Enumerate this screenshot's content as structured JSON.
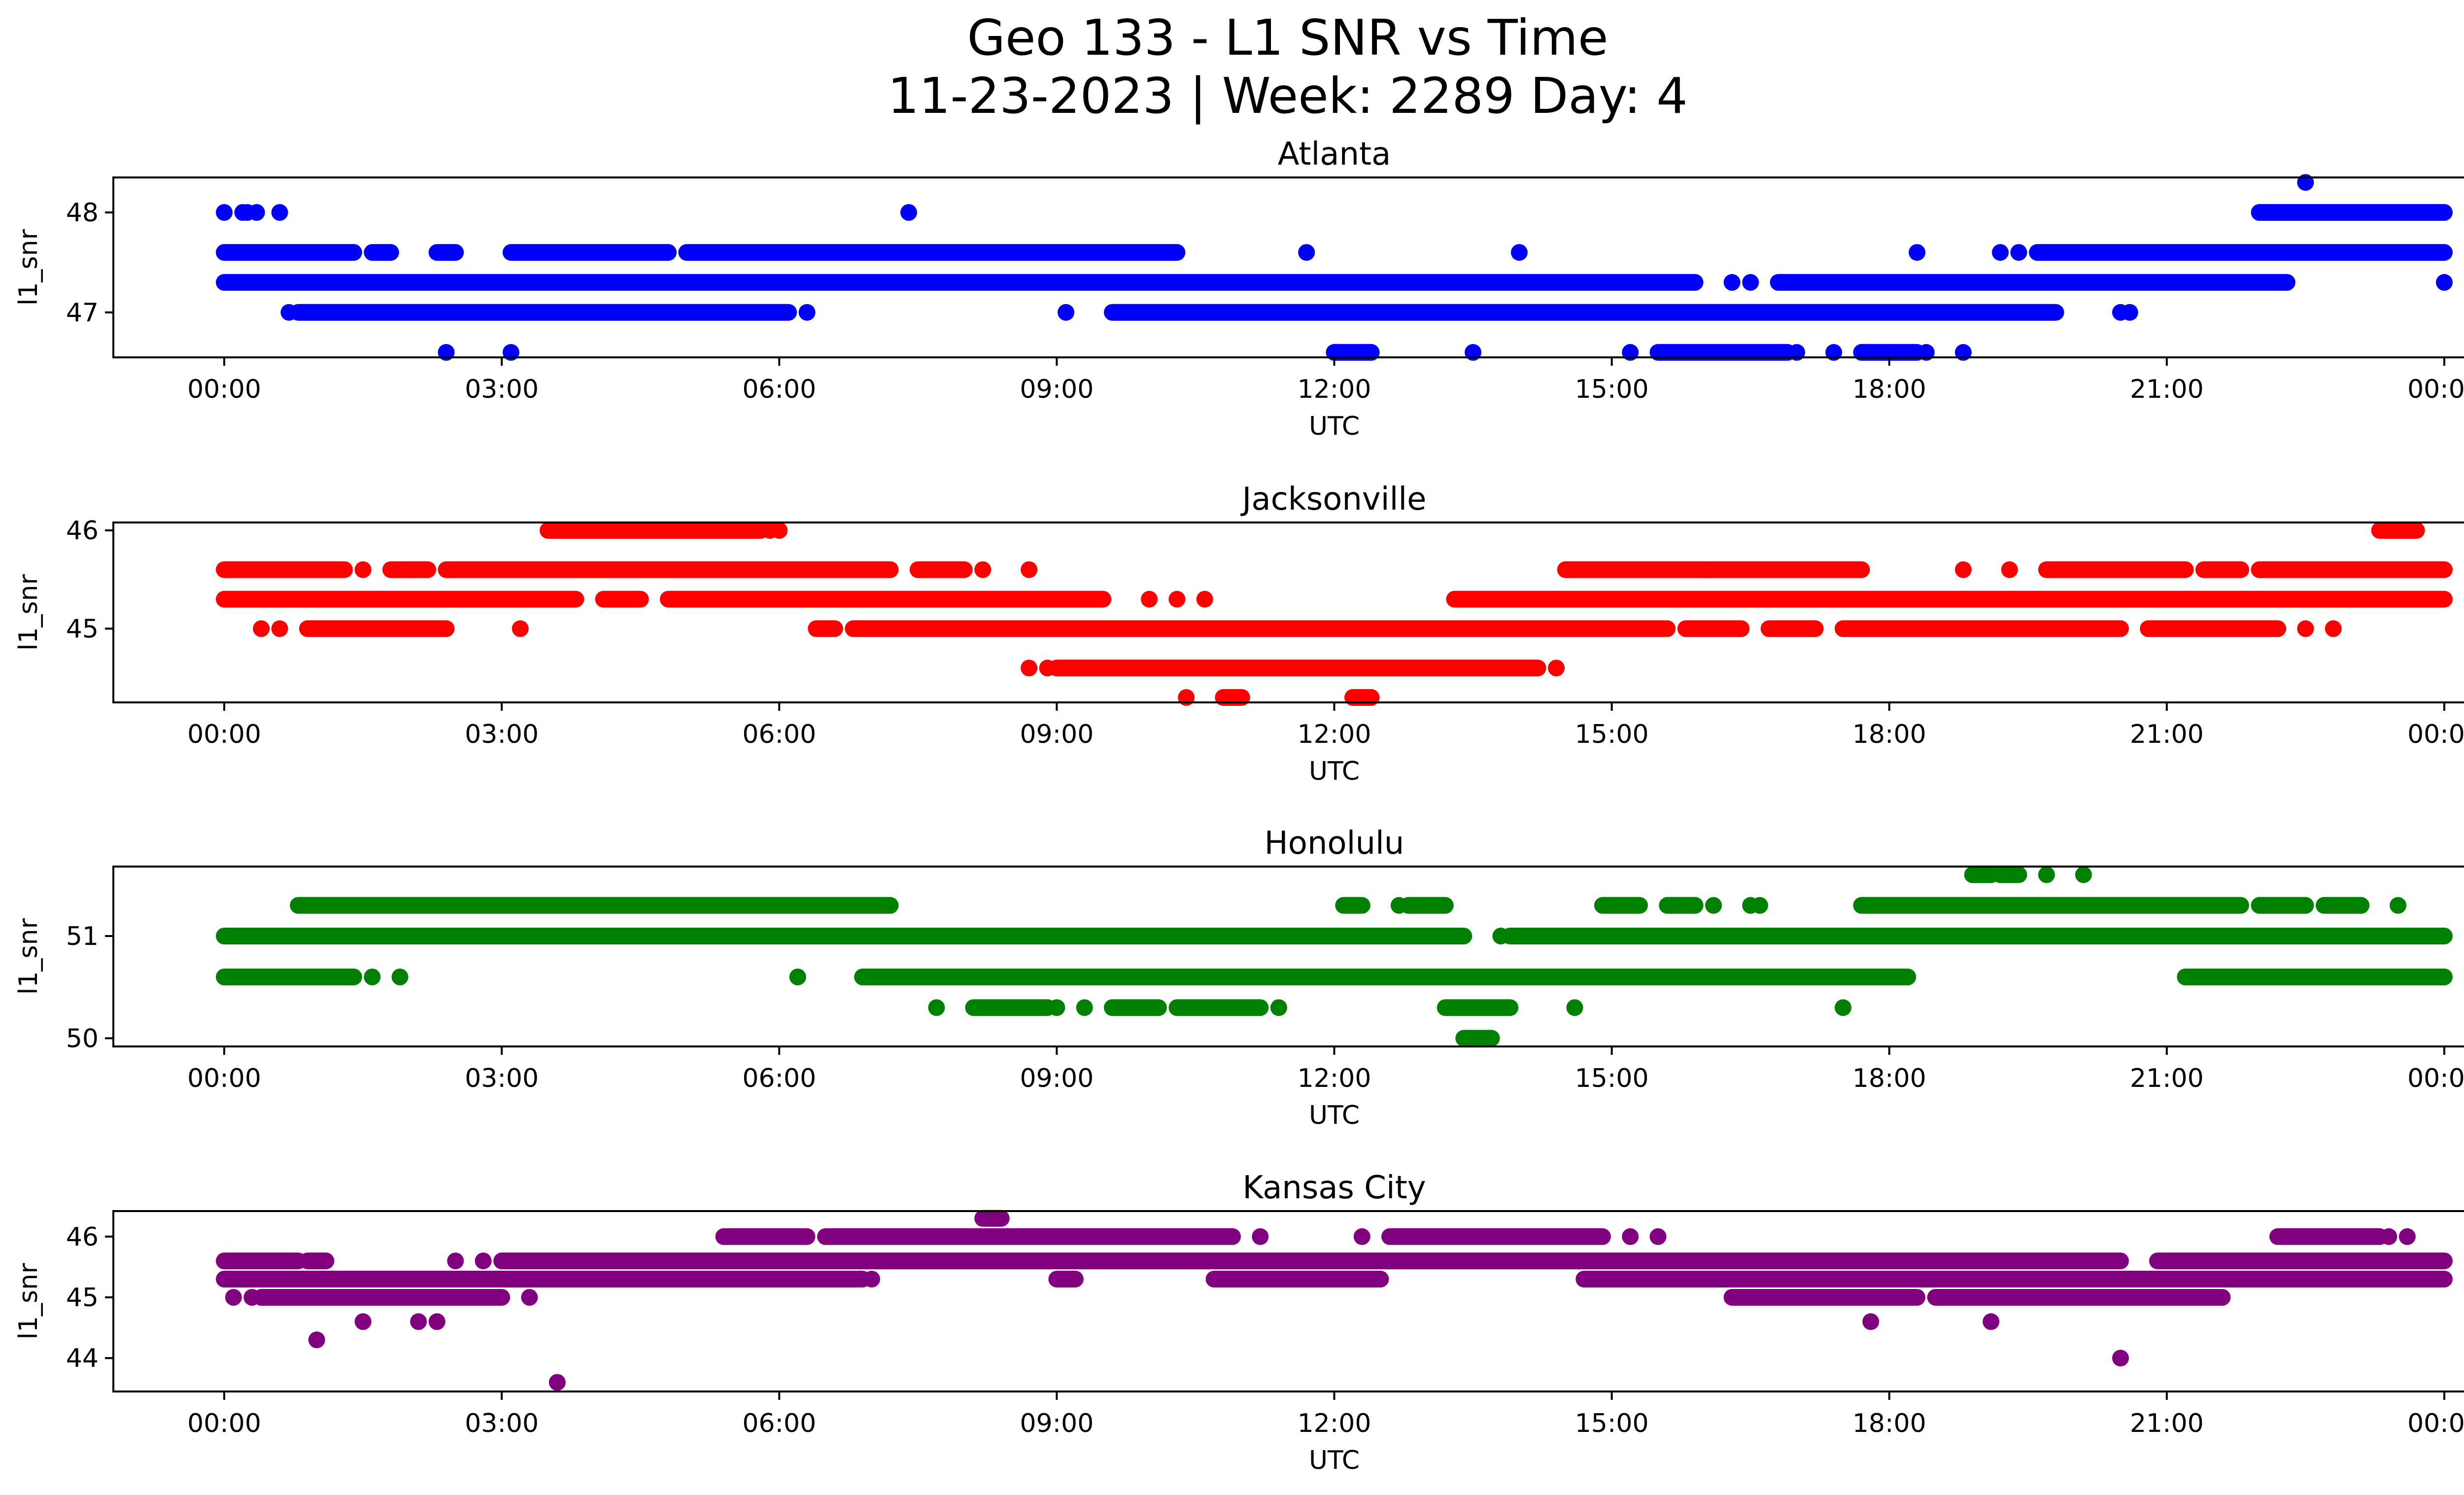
{
  "title_line1": "Geo 133 - L1 SNR vs Time",
  "title_line2": "11-23-2023 | Week: 2289 Day: 4",
  "chart_data": [
    {
      "type": "scatter",
      "title": "Atlanta",
      "color": "#0000ff",
      "xlabel": "UTC",
      "ylabel": "l1_snr",
      "xlim": [
        "00:00",
        "24:00"
      ],
      "ylim": [
        46.55,
        48.35
      ],
      "x_ticks": [
        "00:00",
        "03:00",
        "06:00",
        "09:00",
        "12:00",
        "15:00",
        "18:00",
        "21:00",
        "00:00"
      ],
      "y_ticks": [
        47,
        48
      ],
      "levels": [
        {
          "y": 48.3,
          "segments": [
            [
              22.5,
              22.5
            ]
          ]
        },
        {
          "y": 48.0,
          "points": [
            0.0,
            0.2,
            0.25,
            0.35,
            0.6,
            7.4
          ],
          "segments": [
            [
              22.0,
              24.0
            ]
          ]
        },
        {
          "y": 47.6,
          "points": [
            11.7,
            14.0,
            18.3,
            19.2,
            19.4
          ],
          "segments": [
            [
              0.0,
              1.4
            ],
            [
              1.6,
              1.8
            ],
            [
              2.3,
              2.5
            ],
            [
              3.1,
              4.8
            ],
            [
              5.0,
              10.3
            ],
            [
              19.6,
              24.0
            ]
          ]
        },
        {
          "y": 47.3,
          "points": [
            16.3,
            16.5,
            24.0
          ],
          "segments": [
            [
              0.0,
              15.9
            ],
            [
              16.8,
              22.3
            ]
          ]
        },
        {
          "y": 47.0,
          "points": [
            0.7,
            6.3,
            9.1,
            20.5,
            20.6
          ],
          "segments": [
            [
              0.8,
              6.1
            ],
            [
              9.6,
              19.8
            ]
          ]
        },
        {
          "y": 46.6,
          "points": [
            2.4,
            3.1,
            13.5,
            15.2,
            17.0,
            17.4,
            18.0,
            18.4,
            18.8
          ],
          "segments": [
            [
              12.0,
              12.4
            ],
            [
              15.5,
              16.9
            ],
            [
              17.7,
              18.3
            ]
          ]
        }
      ]
    },
    {
      "type": "scatter",
      "title": "Jacksonville",
      "color": "#ff0000",
      "xlabel": "UTC",
      "ylabel": "l1_snr",
      "xlim": [
        "00:00",
        "24:00"
      ],
      "ylim": [
        44.25,
        46.08
      ],
      "x_ticks": [
        "00:00",
        "03:00",
        "06:00",
        "09:00",
        "12:00",
        "15:00",
        "18:00",
        "21:00",
        "00:00"
      ],
      "y_ticks": [
        45,
        46
      ],
      "levels": [
        {
          "y": 46.0,
          "points": [
            5.9,
            6.0
          ],
          "segments": [
            [
              3.5,
              5.8
            ],
            [
              23.3,
              23.7
            ]
          ]
        },
        {
          "y": 45.6,
          "points": [
            1.5,
            2.0,
            8.2,
            8.7,
            16.0,
            18.8,
            19.3
          ],
          "segments": [
            [
              0.0,
              1.3
            ],
            [
              1.8,
              2.2
            ],
            [
              2.4,
              7.2
            ],
            [
              7.5,
              8.0
            ],
            [
              14.5,
              17.7
            ],
            [
              19.7,
              21.2
            ],
            [
              21.4,
              21.8
            ],
            [
              22.0,
              24.0
            ]
          ]
        },
        {
          "y": 45.3,
          "points": [
            10.0,
            10.3,
            10.6
          ],
          "segments": [
            [
              0.0,
              3.8
            ],
            [
              4.1,
              4.5
            ],
            [
              4.8,
              9.5
            ],
            [
              13.3,
              24.0
            ]
          ]
        },
        {
          "y": 45.0,
          "points": [
            0.4,
            0.6,
            3.2,
            22.5,
            22.8
          ],
          "segments": [
            [
              0.9,
              2.4
            ],
            [
              6.4,
              6.6
            ],
            [
              6.8,
              15.6
            ],
            [
              15.8,
              16.4
            ],
            [
              16.7,
              17.2
            ],
            [
              17.5,
              20.5
            ],
            [
              20.8,
              22.2
            ]
          ]
        },
        {
          "y": 44.6,
          "points": [
            8.7,
            8.9,
            14.4
          ],
          "segments": [
            [
              9.0,
              14.2
            ]
          ]
        },
        {
          "y": 44.3,
          "points": [
            10.4,
            10.9
          ],
          "segments": [
            [
              10.8,
              11.0
            ],
            [
              12.2,
              12.4
            ]
          ]
        }
      ]
    },
    {
      "type": "scatter",
      "title": "Honolulu",
      "color": "#008000",
      "xlabel": "UTC",
      "ylabel": "l1_snr",
      "xlim": [
        "00:00",
        "24:00"
      ],
      "ylim": [
        49.92,
        51.68
      ],
      "x_ticks": [
        "00:00",
        "03:00",
        "06:00",
        "09:00",
        "12:00",
        "15:00",
        "18:00",
        "21:00",
        "00:00"
      ],
      "y_ticks": [
        50,
        51
      ],
      "levels": [
        {
          "y": 51.6,
          "points": [
            19.7,
            20.1
          ],
          "segments": [
            [
              18.9,
              19.1
            ],
            [
              19.2,
              19.4
            ]
          ]
        },
        {
          "y": 51.3,
          "points": [
            12.7,
            15.9,
            16.1,
            16.5,
            16.6,
            23.1,
            23.5
          ],
          "segments": [
            [
              0.8,
              7.2
            ],
            [
              12.1,
              12.3
            ],
            [
              12.8,
              13.2
            ],
            [
              14.9,
              15.3
            ],
            [
              15.6,
              15.9
            ],
            [
              17.7,
              21.8
            ],
            [
              22.0,
              22.5
            ],
            [
              22.7,
              23.1
            ]
          ]
        },
        {
          "y": 51.0,
          "points": [
            13.8
          ],
          "segments": [
            [
              0.0,
              13.4
            ],
            [
              13.9,
              24.0
            ]
          ]
        },
        {
          "y": 50.6,
          "points": [
            1.6,
            1.9,
            6.2
          ],
          "segments": [
            [
              0.0,
              1.4
            ],
            [
              6.9,
              18.2
            ],
            [
              21.2,
              24.0
            ]
          ]
        },
        {
          "y": 50.3,
          "points": [
            7.7,
            9.0,
            9.3,
            11.4,
            14.6,
            17.5
          ],
          "segments": [
            [
              8.1,
              8.9
            ],
            [
              9.6,
              10.1
            ],
            [
              10.3,
              11.2
            ],
            [
              13.2,
              13.9
            ]
          ]
        },
        {
          "y": 50.0,
          "points": [
            13.6
          ],
          "segments": [
            [
              13.4,
              13.7
            ]
          ]
        }
      ]
    },
    {
      "type": "scatter",
      "title": "Kansas City",
      "color": "#800080",
      "xlabel": "UTC",
      "ylabel": "l1_snr",
      "xlim": [
        "00:00",
        "24:00"
      ],
      "ylim": [
        43.45,
        46.42
      ],
      "x_ticks": [
        "00:00",
        "03:00",
        "06:00",
        "09:00",
        "12:00",
        "15:00",
        "18:00",
        "21:00",
        "00:00"
      ],
      "y_ticks": [
        44,
        45,
        46
      ],
      "levels": [
        {
          "y": 46.3,
          "segments": [
            [
              8.2,
              8.4
            ]
          ]
        },
        {
          "y": 46.0,
          "points": [
            11.2,
            12.3,
            15.2,
            15.5,
            23.4,
            23.6
          ],
          "segments": [
            [
              5.4,
              6.3
            ],
            [
              6.5,
              10.9
            ],
            [
              12.6,
              14.9
            ],
            [
              22.2,
              23.3
            ]
          ]
        },
        {
          "y": 45.6,
          "points": [
            2.5,
            2.8
          ],
          "segments": [
            [
              0.0,
              0.8
            ],
            [
              0.9,
              1.1
            ],
            [
              3.0,
              20.5
            ],
            [
              20.9,
              24.0
            ]
          ]
        },
        {
          "y": 45.3,
          "points": [
            7.0,
            11.6
          ],
          "segments": [
            [
              0.0,
              6.9
            ],
            [
              9.0,
              9.2
            ],
            [
              10.7,
              12.5
            ],
            [
              14.7,
              24.0
            ]
          ]
        },
        {
          "y": 45.0,
          "points": [
            0.1,
            0.3,
            3.3
          ],
          "segments": [
            [
              0.4,
              3.0
            ],
            [
              16.3,
              18.3
            ],
            [
              18.5,
              21.6
            ]
          ]
        },
        {
          "y": 44.6,
          "points": [
            1.5,
            2.1,
            2.3,
            17.8,
            19.1
          ]
        },
        {
          "y": 44.3,
          "points": [
            1.0
          ]
        },
        {
          "y": 44.0,
          "points": [
            20.5
          ]
        },
        {
          "y": 43.6,
          "points": [
            3.6
          ]
        }
      ]
    }
  ]
}
